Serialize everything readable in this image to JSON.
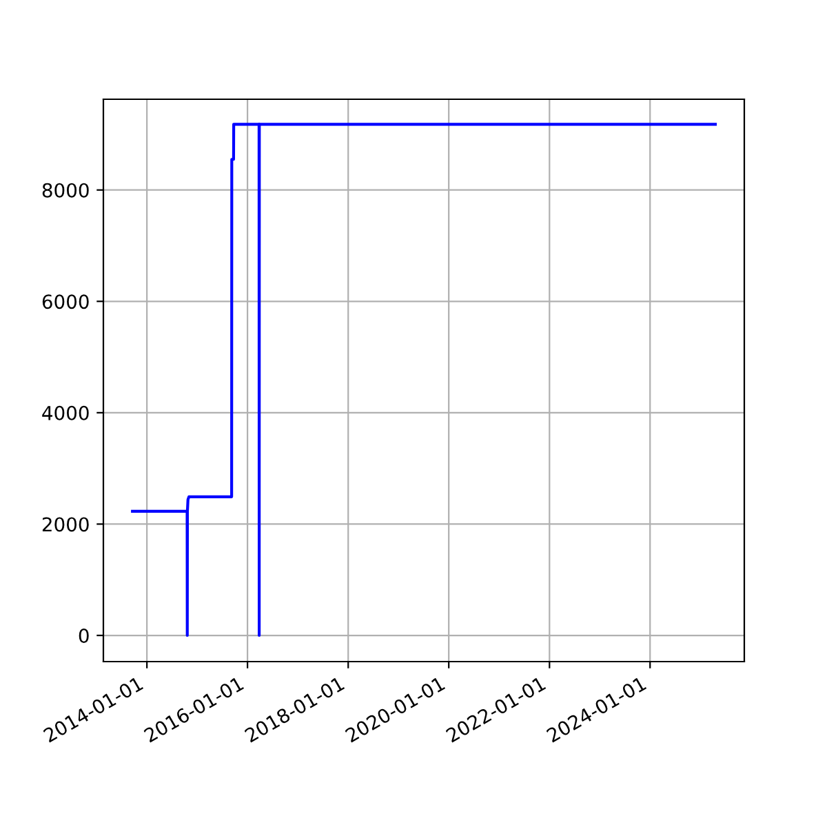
{
  "chart_data": {
    "type": "line",
    "x": [
      "2013-09-18",
      "2014-10-20",
      "2014-10-21",
      "2014-10-22",
      "2014-10-26",
      "2014-11-02",
      "2015-09-08",
      "2015-09-09",
      "2015-09-22",
      "2015-09-23",
      "2016-03-25",
      "2016-03-26",
      "2016-03-27",
      "2025-04-19"
    ],
    "series": [
      {
        "color": "#0000ff",
        "values": [
          2230,
          2230,
          0,
          2230,
          2440,
          2490,
          2490,
          8550,
          8550,
          9180,
          9180,
          0,
          9180,
          9180
        ]
      }
    ],
    "xlim": [
      "2013-02-19",
      "2025-11-15"
    ],
    "xticks": [
      {
        "value": "2014-01-01",
        "label": "2014-01-01"
      },
      {
        "value": "2016-01-01",
        "label": "2016-01-01"
      },
      {
        "value": "2018-01-01",
        "label": "2018-01-01"
      },
      {
        "value": "2020-01-01",
        "label": "2020-01-01"
      },
      {
        "value": "2022-01-01",
        "label": "2022-01-01"
      },
      {
        "value": "2024-01-01",
        "label": "2024-01-01"
      }
    ],
    "ylim": [
      -470,
      9630
    ],
    "yticks": [
      0,
      2000,
      4000,
      6000,
      8000
    ],
    "grid": true,
    "legend": false,
    "marker": "none",
    "line_style": "solid"
  }
}
